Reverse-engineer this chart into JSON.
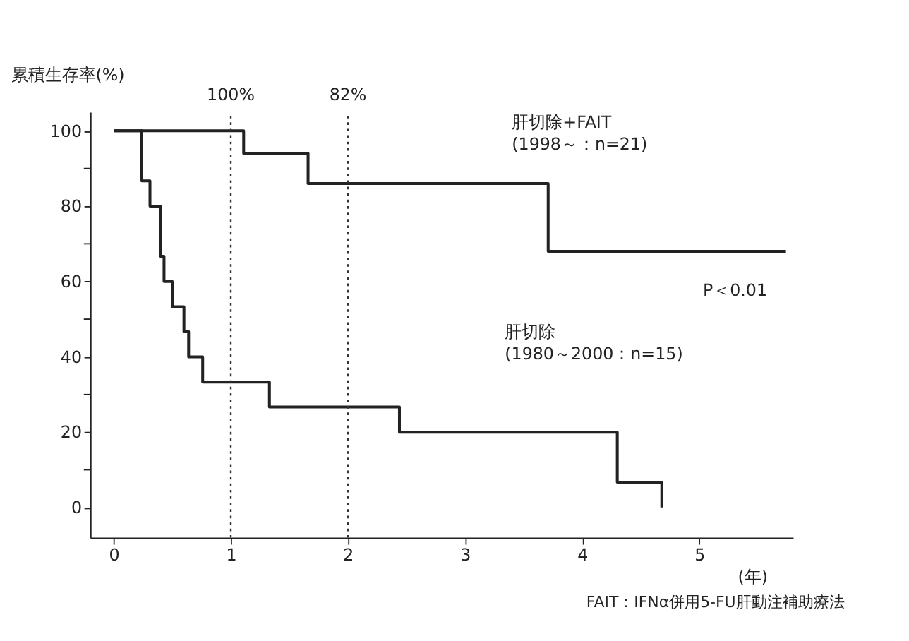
{
  "chart_data": {
    "type": "step",
    "ylabel": "累積生存率(%)",
    "xlabel": "(年)",
    "series": [
      {
        "color": "#222222",
        "x": [
          0,
          1.11,
          1.66,
          3.71,
          5.74
        ],
        "values": [
          100,
          94,
          86,
          68,
          68
        ]
      },
      {
        "color": "#222222",
        "x": [
          0,
          0.24,
          0.31,
          0.4,
          0.43,
          0.5,
          0.6,
          0.64,
          0.76,
          1.33,
          2.44,
          4.3,
          4.68,
          4.68
        ],
        "values": [
          100,
          86.7,
          80,
          66.7,
          60,
          53.3,
          46.7,
          40,
          33.3,
          26.7,
          20,
          6.7,
          6.7,
          0
        ]
      }
    ],
    "xlim": [
      -0.2,
      5.8
    ],
    "ylim": [
      -8,
      105
    ],
    "xticks": [
      0,
      1,
      2,
      3,
      4,
      5
    ],
    "yticks": [
      0,
      {
        "value": 10,
        "label": null
      },
      20,
      {
        "value": 30,
        "label": null
      },
      40,
      {
        "value": 50,
        "label": null
      },
      60,
      {
        "value": 70,
        "label": null
      },
      80,
      {
        "value": 90,
        "label": null
      },
      100
    ],
    "ref_lines": [
      {
        "axis": "x",
        "value": 1,
        "line_style": "dotted"
      },
      {
        "axis": "x",
        "value": 2,
        "line_style": "dotted"
      }
    ],
    "annotations": [
      "100%",
      "82%",
      "肝切除+FAIT\n(1998～：n=21)",
      "肝切除\n(1980～2000：n=15)",
      "P＜0.01",
      "FAIT：IFNα併用5-FU肝動注補助療法"
    ],
    "grid": false
  }
}
